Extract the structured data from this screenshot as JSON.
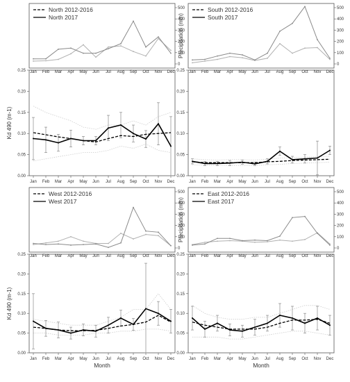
{
  "months": [
    "Jan",
    "Feb",
    "Mar",
    "Apr",
    "May",
    "Jun",
    "Jul",
    "Aug",
    "Sep",
    "Oct",
    "Nov",
    "Dec"
  ],
  "colors": {
    "kd2017": "#000000",
    "kd_mean": "#000000",
    "precip2017": "#8a8a8a",
    "precip_mean": "#b0b0b0",
    "band": "#cccccc",
    "errorbar": "#888888"
  },
  "chart_data": [
    {
      "type": "line",
      "panel": "North",
      "legend": [
        "North 2012-2016",
        "North 2017"
      ],
      "precip_ylabel": "",
      "precip_ylim": [
        0,
        500
      ],
      "precip_ticks": [
        0,
        100,
        200,
        300,
        400,
        500
      ],
      "precip_series": [
        {
          "name": "North 2012-2016",
          "values": [
            25,
            28,
            40,
            90,
            170,
            60,
            150,
            160,
            110,
            70,
            225,
            120
          ]
        },
        {
          "name": "North 2017",
          "values": [
            45,
            45,
            130,
            140,
            95,
            95,
            135,
            180,
            380,
            150,
            240,
            95
          ]
        }
      ],
      "kd_ylabel": "Kd 490 (m-1)",
      "kd_ylim": [
        0,
        0.25
      ],
      "kd_ticks": [
        0,
        0.05,
        0.1,
        0.15,
        0.2,
        0.25
      ],
      "kd_mean": [
        0.102,
        0.097,
        0.092,
        0.088,
        0.083,
        0.08,
        0.088,
        0.095,
        0.093,
        0.098,
        0.1,
        0.102
      ],
      "kd_2017": [
        0.088,
        0.085,
        0.078,
        0.088,
        0.083,
        0.083,
        0.113,
        0.12,
        0.1,
        0.087,
        0.123,
        0.07
      ],
      "kd_2017_err": [
        0.05,
        0.03,
        0.02,
        0.02,
        0.01,
        0.01,
        0.03,
        0.03,
        0.02,
        0.02,
        0.05,
        0.07
      ],
      "band_upper": [
        0.165,
        0.15,
        0.14,
        0.13,
        0.115,
        0.11,
        0.12,
        0.12,
        0.13,
        0.12,
        0.14,
        0.15
      ],
      "band_lower": [
        0.035,
        0.04,
        0.045,
        0.05,
        0.055,
        0.055,
        0.06,
        0.07,
        0.065,
        0.075,
        0.06,
        0.055
      ],
      "show_precip_ylabel": false,
      "show_kd_ylabel": true,
      "show_xlabel": false
    },
    {
      "type": "line",
      "panel": "South",
      "legend": [
        "South 2012-2016",
        "South 2017"
      ],
      "precip_ylabel": "Precipitation (mm)",
      "precip_ylim": [
        0,
        500
      ],
      "precip_ticks": [
        0,
        100,
        200,
        300,
        400,
        500
      ],
      "precip_series": [
        {
          "name": "South 2012-2016",
          "values": [
            10,
            25,
            40,
            65,
            55,
            30,
            50,
            180,
            95,
            140,
            145,
            40
          ]
        },
        {
          "name": "South 2017",
          "values": [
            35,
            40,
            70,
            95,
            80,
            35,
            95,
            290,
            360,
            510,
            215,
            50
          ]
        }
      ],
      "kd_ylabel": "",
      "kd_ylim": [
        0,
        0.25
      ],
      "kd_ticks": [
        0,
        0.05,
        0.1,
        0.15,
        0.2,
        0.25
      ],
      "kd_mean": [
        0.033,
        0.031,
        0.031,
        0.031,
        0.031,
        0.031,
        0.033,
        0.034,
        0.036,
        0.037,
        0.038,
        0.039
      ],
      "kd_2017": [
        0.034,
        0.029,
        0.029,
        0.03,
        0.032,
        0.028,
        0.034,
        0.058,
        0.038,
        0.04,
        0.042,
        0.06
      ],
      "kd_2017_err": [
        0.006,
        0.005,
        0.005,
        0.006,
        0.005,
        0.004,
        0.006,
        0.01,
        0.008,
        0.01,
        0.04,
        0.01
      ],
      "band_upper": [
        0.04,
        0.038,
        0.037,
        0.038,
        0.038,
        0.037,
        0.039,
        0.042,
        0.043,
        0.044,
        0.045,
        0.046
      ],
      "band_lower": [
        0.026,
        0.025,
        0.025,
        0.024,
        0.024,
        0.024,
        0.026,
        0.027,
        0.029,
        0.03,
        0.031,
        0.032
      ],
      "show_precip_ylabel": true,
      "show_kd_ylabel": false,
      "show_xlabel": false
    },
    {
      "type": "line",
      "panel": "West",
      "legend": [
        "West 2012-2016",
        "West 2017"
      ],
      "precip_ylabel": "",
      "precip_ylim": [
        0,
        500
      ],
      "precip_ticks": [
        0,
        100,
        200,
        300,
        400,
        500
      ],
      "precip_series": [
        {
          "name": "West 2012-2016",
          "values": [
            30,
            45,
            60,
            100,
            60,
            40,
            40,
            130,
            80,
            120,
            110,
            20
          ]
        },
        {
          "name": "West 2017",
          "values": [
            40,
            30,
            35,
            25,
            30,
            35,
            5,
            45,
            360,
            150,
            140,
            20
          ]
        }
      ],
      "kd_ylabel": "Kd 490 (m-1)",
      "kd_ylim": [
        0,
        0.25
      ],
      "kd_ticks": [
        0,
        0.05,
        0.1,
        0.15,
        0.2,
        0.25
      ],
      "kd_mean": [
        0.065,
        0.062,
        0.058,
        0.056,
        0.056,
        0.057,
        0.062,
        0.068,
        0.072,
        0.078,
        0.095,
        0.078
      ],
      "kd_2017": [
        0.08,
        0.062,
        0.058,
        0.05,
        0.058,
        0.055,
        0.07,
        0.088,
        0.072,
        0.112,
        0.1,
        0.08
      ],
      "kd_2017_err": [
        0.07,
        0.02,
        0.02,
        0.015,
        0.015,
        0.015,
        0.02,
        0.02,
        0.015,
        0.115,
        0.03,
        0.03
      ],
      "band_upper": [
        0.085,
        0.08,
        0.075,
        0.07,
        0.07,
        0.07,
        0.08,
        0.09,
        0.11,
        0.11,
        0.15,
        0.11
      ],
      "band_lower": [
        0.05,
        0.05,
        0.045,
        0.045,
        0.045,
        0.05,
        0.05,
        0.055,
        0.055,
        0.06,
        0.06,
        0.055
      ],
      "show_precip_ylabel": false,
      "show_kd_ylabel": true,
      "show_xlabel": true
    },
    {
      "type": "line",
      "panel": "East",
      "legend": [
        "East 2012-2016",
        "East 2017"
      ],
      "precip_ylabel": "Precipitation (mm)",
      "precip_ylim": [
        0,
        500
      ],
      "precip_ticks": [
        0,
        100,
        200,
        300,
        400,
        500
      ],
      "precip_series": [
        {
          "name": "East 2012-2016",
          "values": [
            30,
            50,
            60,
            65,
            60,
            50,
            55,
            70,
            60,
            75,
            135,
            35
          ]
        },
        {
          "name": "East 2017",
          "values": [
            25,
            35,
            85,
            85,
            65,
            70,
            65,
            105,
            270,
            280,
            130,
            25
          ]
        }
      ],
      "kd_ylabel": "",
      "kd_ylim": [
        0,
        0.25
      ],
      "kd_ticks": [
        0,
        0.05,
        0.1,
        0.15,
        0.2,
        0.25
      ],
      "kd_mean": [
        0.078,
        0.07,
        0.065,
        0.06,
        0.06,
        0.06,
        0.065,
        0.075,
        0.083,
        0.083,
        0.085,
        0.075
      ],
      "kd_2017": [
        0.088,
        0.06,
        0.075,
        0.058,
        0.055,
        0.065,
        0.075,
        0.095,
        0.088,
        0.075,
        0.088,
        0.07
      ],
      "kd_2017_err": [
        0.03,
        0.02,
        0.02,
        0.015,
        0.015,
        0.02,
        0.02,
        0.03,
        0.03,
        0.025,
        0.03,
        0.025
      ],
      "band_upper": [
        0.12,
        0.1,
        0.09,
        0.085,
        0.085,
        0.09,
        0.09,
        0.1,
        0.11,
        0.12,
        0.12,
        0.11
      ],
      "band_lower": [
        0.04,
        0.04,
        0.04,
        0.035,
        0.035,
        0.04,
        0.045,
        0.05,
        0.055,
        0.055,
        0.05,
        0.045
      ],
      "show_precip_ylabel": true,
      "show_kd_ylabel": false,
      "show_xlabel": true
    }
  ],
  "xlabel": "Month"
}
